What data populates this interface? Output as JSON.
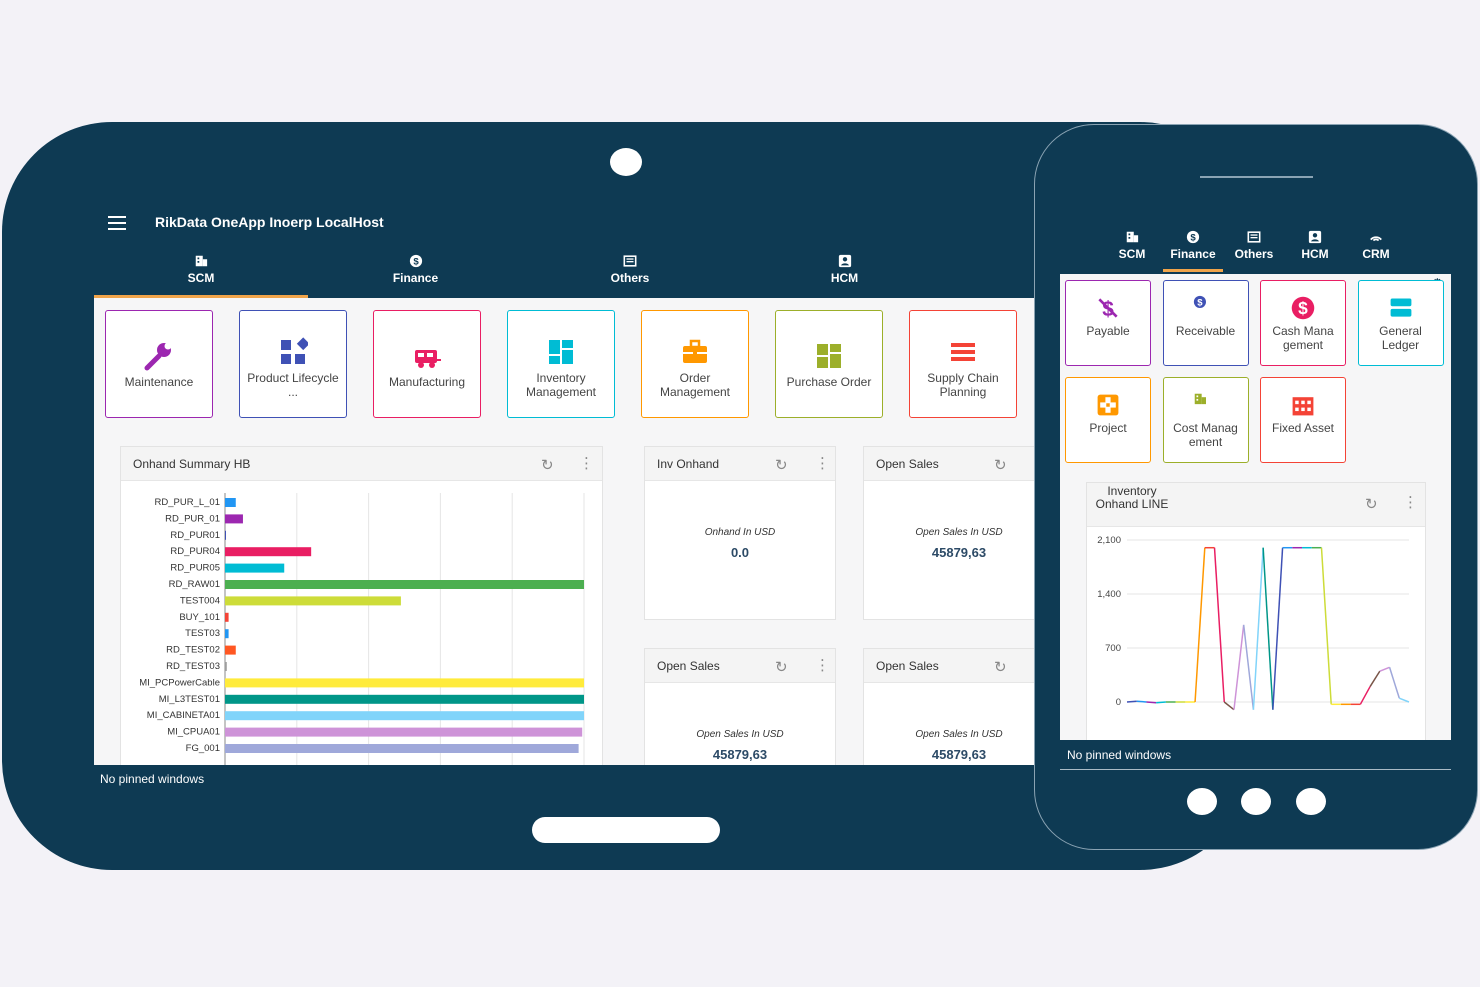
{
  "app": {
    "title": "RikData OneApp Inoerp LocalHost"
  },
  "tablet": {
    "tabs": [
      {
        "label": "SCM",
        "icon": "building-icon",
        "active": true
      },
      {
        "label": "Finance",
        "icon": "dollar-icon",
        "active": false
      },
      {
        "label": "Others",
        "icon": "list-icon",
        "active": false
      },
      {
        "label": "HCM",
        "icon": "person-badge-icon",
        "active": false
      }
    ],
    "tiles": [
      {
        "label": "Maintenance",
        "icon": "wrench-icon",
        "color": "#9c27b0"
      },
      {
        "label": "Product Lifecycle ...",
        "icon": "shapes-icon",
        "color": "#3f51b5"
      },
      {
        "label": "Manufacturing",
        "icon": "rv-icon",
        "color": "#e91e63"
      },
      {
        "label": "Inventory Management",
        "icon": "dashboard-icon",
        "color": "#00bcd4"
      },
      {
        "label": "Order Management",
        "icon": "briefcase-icon",
        "color": "#ff9800"
      },
      {
        "label": "Purchase Order",
        "icon": "grid-icon",
        "color": "#9caf2a"
      },
      {
        "label": "Supply Chain Planning",
        "icon": "stack-icon",
        "color": "#f44336"
      }
    ],
    "onhand_card": {
      "title": "Onhand Summary HB"
    },
    "kpi_cards": [
      {
        "title": "Inv Onhand",
        "label": "Onhand In USD",
        "value": "0.0"
      },
      {
        "title": "Open Sales",
        "label": "Open Sales In USD",
        "value": "45879,63"
      },
      {
        "title": "Open Sales",
        "label": "Open Sales In USD",
        "value": "45879,63"
      },
      {
        "title": "Open Sales",
        "label": "Open Sales In USD",
        "value": "45879,63"
      }
    ],
    "footer": "No pinned windows"
  },
  "phone": {
    "tabs": [
      {
        "label": "SCM",
        "icon": "building-icon",
        "active": false
      },
      {
        "label": "Finance",
        "icon": "dollar-icon",
        "active": true
      },
      {
        "label": "Others",
        "icon": "list-icon",
        "active": false
      },
      {
        "label": "HCM",
        "icon": "person-badge-icon",
        "active": false
      },
      {
        "label": "CRM",
        "icon": "signal-icon",
        "active": false
      }
    ],
    "tiles": [
      {
        "label": "Payable",
        "icon": "dollar-slash-icon",
        "color": "#9c27b0"
      },
      {
        "label": "Receivable",
        "icon": "dollar-icon",
        "color": "#3f51b5"
      },
      {
        "label": "Cash Mana gement",
        "icon": "coin-icon",
        "color": "#e91e63"
      },
      {
        "label": "General Ledger",
        "icon": "ledger-icon",
        "color": "#00bcd4"
      },
      {
        "label": "Project",
        "icon": "project-icon",
        "color": "#ff9800"
      },
      {
        "label": "Cost Manag ement",
        "icon": "building-icon",
        "color": "#9caf2a"
      },
      {
        "label": "Fixed Asset",
        "icon": "factory-icon",
        "color": "#f44336"
      }
    ],
    "line_card": {
      "title": "Inventory Onhand LINE"
    },
    "footer": "No pinned windows"
  },
  "chart_data": [
    {
      "type": "bar",
      "orientation": "horizontal",
      "title": "Onhand Summary HB",
      "categories": [
        "RD_PUR_L_01",
        "RD_PUR_01",
        "RD_PUR01",
        "RD_PUR04",
        "RD_PUR05",
        "RD_RAW01",
        "TEST004",
        "BUY_101",
        "TEST03",
        "RD_TEST02",
        "RD_TEST03",
        "MI_PCPowerCable",
        "MI_L3TEST01",
        "MI_CABINETA01",
        "MI_CPUA01",
        "FG_001"
      ],
      "values": [
        3,
        5,
        0.2,
        24,
        16.5,
        100,
        49,
        1,
        1,
        3,
        0.5,
        100,
        100,
        100,
        99.5,
        98.5
      ],
      "colors": [
        "#2196f3",
        "#9c27b0",
        "#3f51b5",
        "#e91e63",
        "#00bcd4",
        "#4caf50",
        "#cddc39",
        "#f44336",
        "#2196f3",
        "#ff5722",
        "#9e9e9e",
        "#ffeb3b",
        "#009688",
        "#81d4fa",
        "#ce93d8",
        "#9fa8da"
      ],
      "grid": true
    },
    {
      "type": "line",
      "title": "Inventory Onhand LINE",
      "y_ticks": [
        "0",
        "700",
        "1,400",
        "2,100"
      ],
      "ylim": [
        0,
        2100
      ],
      "values": [
        0,
        10,
        0,
        -10,
        0,
        0,
        0,
        0,
        2000,
        2000,
        0,
        -100,
        1000,
        -100,
        2000,
        -100,
        2000,
        2000,
        2000,
        2000,
        2000,
        -30,
        -30,
        -30,
        -30,
        200,
        400,
        450,
        50,
        0
      ],
      "colors": [
        "#3f51b5",
        "#2196f3",
        "#9c27b0",
        "#00bcd4",
        "#4caf50",
        "#cddc39",
        "#ffeb3b",
        "#ff9800",
        "#f44336",
        "#e91e63",
        "#795548",
        "#ce93d8",
        "#9fa8da",
        "#81d4fa",
        "#009688"
      ],
      "grid": true
    }
  ]
}
